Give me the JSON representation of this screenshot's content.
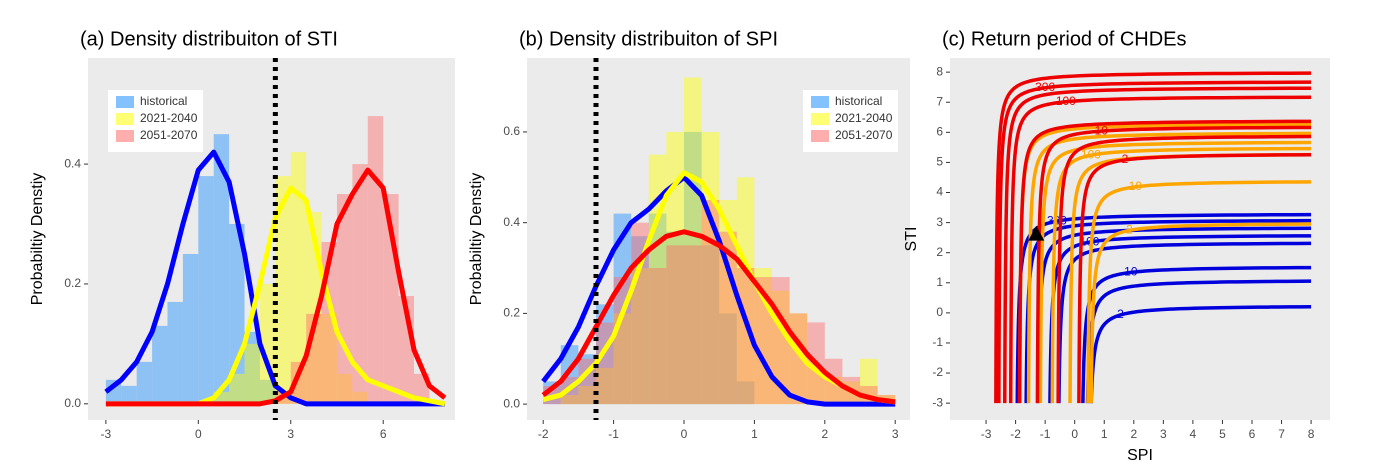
{
  "chart_data": [
    {
      "type": "histogram",
      "title": "(a) Density distribuiton of STI",
      "y_label": "Probabiltiy Denstiy",
      "xlim": [
        -3.58,
        8.33
      ],
      "ylim": [
        -0.027,
        0.577
      ],
      "xticks": [
        -3,
        0,
        3,
        6
      ],
      "yticks": [
        {
          "value": 0,
          "label": "0.0"
        },
        0.2,
        0.4
      ],
      "grid": false,
      "legend": "top-left",
      "threshold": 2.5,
      "bins": [
        -3,
        -2.5,
        -2,
        -1.5,
        -1,
        -0.5,
        0,
        0.5,
        1,
        1.5,
        2,
        2.5,
        3,
        3.5,
        4,
        4.5,
        5,
        5.5,
        6,
        6.5,
        7,
        7.5,
        8
      ],
      "density_x": [
        -3,
        -2.5,
        -2,
        -1.5,
        -1,
        -0.5,
        0,
        0.5,
        1,
        1.5,
        2,
        2.5,
        3,
        3.5,
        4,
        4.5,
        5,
        5.5,
        6,
        6.5,
        7,
        7.5,
        8
      ],
      "series": [
        {
          "name": "historical",
          "color": "#1e90ff",
          "line_color": "#0000ff",
          "values": [
            0.04,
            0.03,
            0.07,
            0.13,
            0.17,
            0.25,
            0.38,
            0.45,
            0.3,
            0.12,
            0.04,
            0,
            0,
            0,
            0,
            0,
            0,
            0,
            0,
            0,
            0,
            0
          ],
          "density": [
            0.02,
            0.04,
            0.07,
            0.12,
            0.2,
            0.3,
            0.39,
            0.42,
            0.37,
            0.25,
            0.1,
            0.03,
            0.01,
            0,
            0,
            0,
            0,
            0,
            0,
            0,
            0,
            0,
            0
          ]
        },
        {
          "name": "2021-2040",
          "color": "#ffff00",
          "line_color": "#ffff00",
          "values": [
            0,
            0,
            0,
            0,
            0,
            0,
            0,
            0.02,
            0.05,
            0.1,
            0.2,
            0.38,
            0.42,
            0.32,
            0.15,
            0.05,
            0.02,
            0,
            0,
            0,
            0,
            0
          ],
          "density": [
            0,
            0,
            0,
            0,
            0,
            0,
            0,
            0.01,
            0.04,
            0.1,
            0.2,
            0.31,
            0.36,
            0.34,
            0.22,
            0.12,
            0.07,
            0.04,
            0.03,
            0.02,
            0.01,
            0.005,
            0
          ]
        },
        {
          "name": "2051-2070",
          "color": "#ff6b6b",
          "line_color": "#ff0000",
          "values": [
            0,
            0,
            0,
            0,
            0,
            0,
            0,
            0,
            0,
            0,
            0,
            0.02,
            0.07,
            0.15,
            0.27,
            0.35,
            0.4,
            0.48,
            0.35,
            0.18,
            0.05,
            0
          ],
          "density": [
            0,
            0,
            0,
            0,
            0,
            0,
            0,
            0,
            0,
            0,
            0,
            0.005,
            0.02,
            0.08,
            0.18,
            0.3,
            0.35,
            0.39,
            0.36,
            0.22,
            0.09,
            0.03,
            0.01
          ]
        }
      ]
    },
    {
      "type": "histogram",
      "title": "(b) Density distribuiton of SPI",
      "y_label": "Probabiltiy Denstiy",
      "xlim": [
        -2.23,
        3.21
      ],
      "ylim": [
        -0.035,
        0.763
      ],
      "xticks": [
        -2,
        -1,
        0,
        1,
        2,
        3
      ],
      "yticks": [
        {
          "value": 0,
          "label": "0.0"
        },
        0.2,
        0.4,
        0.6
      ],
      "grid": false,
      "legend": "top-right",
      "threshold": -1.25,
      "bins": [
        -2,
        -1.75,
        -1.5,
        -1.25,
        -1,
        -0.75,
        -0.5,
        -0.25,
        0,
        0.25,
        0.5,
        0.75,
        1,
        1.25,
        1.5,
        1.75,
        2,
        2.25,
        2.5,
        2.75,
        3
      ],
      "density_x": [
        -2,
        -1.75,
        -1.5,
        -1.25,
        -1,
        -0.75,
        -0.5,
        -0.25,
        0,
        0.25,
        0.5,
        0.75,
        1,
        1.25,
        1.5,
        1.75,
        2,
        2.25,
        2.5,
        2.75,
        3
      ],
      "series": [
        {
          "name": "historical",
          "color": "#1e90ff",
          "line_color": "#0000ff",
          "values": [
            0.05,
            0.13,
            0.11,
            0.22,
            0.42,
            0.37,
            0.42,
            0.38,
            0.6,
            0.35,
            0.2,
            0.05,
            0,
            0,
            0,
            0,
            0,
            0,
            0,
            0
          ],
          "density": [
            0.05,
            0.1,
            0.17,
            0.26,
            0.34,
            0.4,
            0.43,
            0.47,
            0.5,
            0.46,
            0.36,
            0.24,
            0.13,
            0.06,
            0.02,
            0.005,
            0,
            0,
            0,
            0,
            0
          ]
        },
        {
          "name": "2021-2040",
          "color": "#ffff00",
          "line_color": "#ffff00",
          "values": [
            0,
            0.02,
            0.04,
            0.08,
            0.2,
            0.3,
            0.55,
            0.6,
            0.72,
            0.6,
            0.45,
            0.5,
            0.3,
            0.25,
            0.2,
            0.08,
            0.06,
            0.05,
            0.1,
            0.02
          ],
          "density": [
            0.01,
            0.02,
            0.05,
            0.09,
            0.15,
            0.25,
            0.36,
            0.46,
            0.51,
            0.49,
            0.43,
            0.35,
            0.27,
            0.2,
            0.14,
            0.09,
            0.06,
            0.04,
            0.02,
            0.01,
            0.005
          ]
        },
        {
          "name": "2051-2070",
          "color": "#ff6b6b",
          "line_color": "#ff0000",
          "values": [
            0.04,
            0.06,
            0.1,
            0.18,
            0.28,
            0.4,
            0.3,
            0.35,
            0.35,
            0.45,
            0.38,
            0.3,
            0.28,
            0.28,
            0.2,
            0.18,
            0.1,
            0.06,
            0.04,
            0.02
          ],
          "density": [
            0.02,
            0.05,
            0.1,
            0.17,
            0.24,
            0.3,
            0.34,
            0.37,
            0.38,
            0.37,
            0.35,
            0.32,
            0.27,
            0.22,
            0.16,
            0.11,
            0.07,
            0.04,
            0.02,
            0.01,
            0.005
          ]
        }
      ]
    },
    {
      "type": "contour",
      "title": "(c) Return period of CHDEs",
      "x_label": "SPI",
      "y_label": "STI",
      "xlim": [
        -4.22,
        8.64
      ],
      "ylim": [
        -3.56,
        8.47
      ],
      "xticks": [
        -3,
        -2,
        -1,
        0,
        1,
        2,
        3,
        4,
        5,
        6,
        7,
        8
      ],
      "yticks": [
        -3,
        -2,
        -1,
        0,
        1,
        2,
        3,
        4,
        5,
        6,
        7,
        8
      ],
      "grid": false,
      "series": [
        {
          "color": "#0000dd",
          "lines": [
            {
              "x": 0.45,
              "y": 0.25,
              "label": "2"
            },
            {
              "x": 0.35,
              "y": 1.1
            },
            {
              "x": 0.2,
              "y": 1.55,
              "label": "10"
            },
            {
              "x": -0.6,
              "y": 2.35
            },
            {
              "x": -0.9,
              "y": 2.6,
              "label": "100"
            },
            {
              "x": -1.3,
              "y": 2.85
            },
            {
              "x": -1.7,
              "y": 3.1
            },
            {
              "x": -2.0,
              "y": 3.3,
              "label": "300"
            }
          ]
        },
        {
          "color": "#ffa500",
          "lines": [
            {
              "x": 0.5,
              "y": 3.0,
              "label": "2"
            },
            {
              "x": 0.4,
              "y": 4.4,
              "label": "10"
            },
            {
              "x": -0.2,
              "y": 5.3
            },
            {
              "x": -0.8,
              "y": 5.5,
              "label": "100"
            },
            {
              "x": -1.2,
              "y": 5.7
            },
            {
              "x": -1.6,
              "y": 6.0
            },
            {
              "x": -1.9,
              "y": 6.3
            }
          ]
        },
        {
          "color": "#ee0000",
          "lines": [
            {
              "x": 0.1,
              "y": 5.3,
              "label": "2"
            },
            {
              "x": -0.6,
              "y": 5.9
            },
            {
              "x": -1.3,
              "y": 6.2,
              "label": "10"
            },
            {
              "x": -1.9,
              "y": 6.4
            },
            {
              "x": -2.2,
              "y": 7.2,
              "label": "100"
            },
            {
              "x": -2.4,
              "y": 7.5
            },
            {
              "x": -2.6,
              "y": 7.7,
              "label": "300"
            },
            {
              "x": -2.7,
              "y": 8.0
            }
          ]
        }
      ],
      "point": {
        "x": -1.3,
        "y": 2.6
      }
    }
  ]
}
